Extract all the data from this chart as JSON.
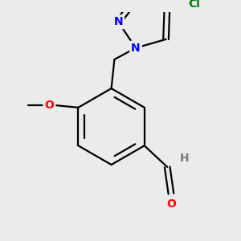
{
  "background_color": "#ebebeb",
  "bond_color": "#000000",
  "N_color": "#0000ff",
  "O_color": "#ff0000",
  "Cl_color": "#008000",
  "H_color": "#7a7a7a",
  "figsize": [
    3.0,
    3.0
  ],
  "dpi": 100,
  "xlim": [
    0,
    300
  ],
  "ylim": [
    0,
    300
  ],
  "bond_lw": 1.6,
  "font_size": 10
}
